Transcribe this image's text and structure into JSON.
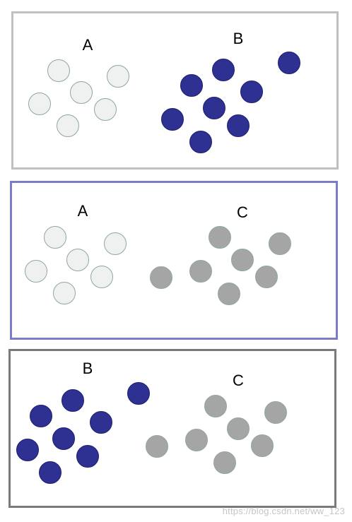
{
  "colors": {
    "A": {
      "fill": "#eff1f1",
      "stroke": "#8fa6a1"
    },
    "B": {
      "fill": "#2e3192",
      "stroke": "#1c1f6e"
    },
    "C": {
      "fill": "#a5a5a5",
      "stroke": "#8fa6a1"
    }
  },
  "panels": [
    {
      "name": "panel-1",
      "groups": [
        {
          "label": "A",
          "kind": "A",
          "count": 6
        },
        {
          "label": "B",
          "kind": "B",
          "count": 7,
          "outliers": 1
        }
      ]
    },
    {
      "name": "panel-2",
      "groups": [
        {
          "label": "A",
          "kind": "A",
          "count": 6
        },
        {
          "label": "C",
          "kind": "C",
          "count": 7,
          "outliers": 1
        }
      ]
    },
    {
      "name": "panel-3",
      "groups": [
        {
          "label": "B",
          "kind": "B",
          "count": 7,
          "outliers": 1
        },
        {
          "label": "C",
          "kind": "C",
          "count": 7,
          "outliers": 1
        }
      ]
    }
  ],
  "watermark": "https://blog.csdn.net/ww_123"
}
